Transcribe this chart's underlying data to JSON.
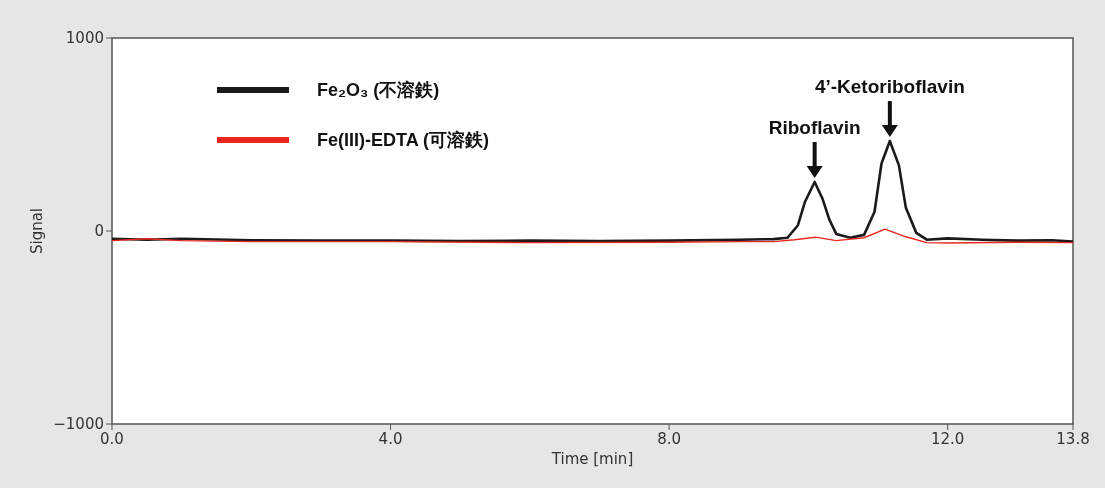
{
  "chart_data": {
    "type": "line",
    "xlabel": "Time [min]",
    "ylabel": "Signal",
    "xlim": [
      0,
      13.8
    ],
    "ylim": [
      -1000,
      1000
    ],
    "xticks": [
      {
        "value": 0,
        "label": "0.0"
      },
      {
        "value": 4,
        "label": "4.0"
      },
      {
        "value": 8,
        "label": "8.0"
      },
      {
        "value": 12,
        "label": "12.0"
      },
      {
        "value": 13.8,
        "label": "13.8"
      }
    ],
    "yticks": [
      1000,
      0,
      -1000
    ],
    "grid": false,
    "legend": "top left",
    "marker": "none",
    "line_style": "solid",
    "series": [
      {
        "name": "Fe₂O₃  (不溶鉄)",
        "color": "#1a1a1a",
        "x": [
          0,
          0.5,
          1,
          2,
          3,
          4,
          5,
          6,
          7,
          8,
          9,
          9.5,
          9.7,
          9.85,
          9.95,
          10.09,
          10.2,
          10.3,
          10.4,
          10.6,
          10.8,
          10.95,
          11.05,
          11.17,
          11.3,
          11.4,
          11.55,
          11.7,
          12,
          12.5,
          13,
          13.5,
          13.8
        ],
        "values": [
          -40,
          -45,
          -40,
          -48,
          -50,
          -50,
          -52,
          -50,
          -52,
          -50,
          -45,
          -42,
          -35,
          30,
          150,
          254,
          170,
          60,
          -15,
          -35,
          -20,
          100,
          350,
          466,
          340,
          120,
          -10,
          -45,
          -38,
          -45,
          -50,
          -48,
          -55
        ]
      },
      {
        "name": "Fe(III)-EDTA (可溶鉄)",
        "color": "#e8281e",
        "x": [
          0,
          0.5,
          1,
          2,
          4,
          6,
          8,
          9,
          9.5,
          9.8,
          10.1,
          10.4,
          10.8,
          11.1,
          11.4,
          11.7,
          12,
          13,
          13.8
        ],
        "values": [
          -50,
          -40,
          -50,
          -55,
          -55,
          -60,
          -58,
          -55,
          -55,
          -45,
          -32,
          -50,
          -35,
          10,
          -30,
          -60,
          -62,
          -58,
          -60
        ]
      }
    ],
    "annotations": [
      {
        "text": "Riboflavin",
        "x": 10.09,
        "y": 254
      },
      {
        "text": "4’-Ketoriboflavin",
        "x": 11.17,
        "y": 466
      }
    ]
  }
}
